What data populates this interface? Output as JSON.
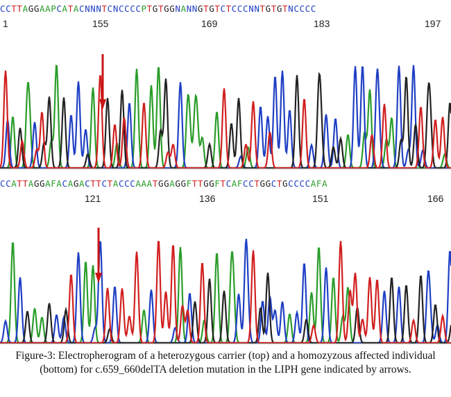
{
  "figure": {
    "top": {
      "sequence": "CCTTAGGAAPCATACNNNTCNCCCCPTGTGGNANNGTGTCTCCCNNTGTGTNCCCC",
      "positions": [
        "1",
        "155",
        "169",
        "183",
        "197"
      ],
      "has_arrow": true
    },
    "bottom": {
      "sequence": "CCATTAGGAFACAGACTTCTACCCAAATGGAGGFTTGGFTCAFCCTGGCTGCCCCAFA",
      "positions": [
        "121",
        "136",
        "151",
        "166"
      ],
      "has_arrow": true
    },
    "trace_colors": {
      "A": "#2a9d2a",
      "C": "#1f3fc4",
      "G": "#222222",
      "T": "#d11f1f"
    },
    "arrow_color": "#c81414"
  },
  "caption": "Figure-3: Electropherogram of a heterozygous carrier (top) and a homozyzous affected individual (bottom) for c.659_660delTA deletion mutation in the LIPH gene indicated by arrows."
}
